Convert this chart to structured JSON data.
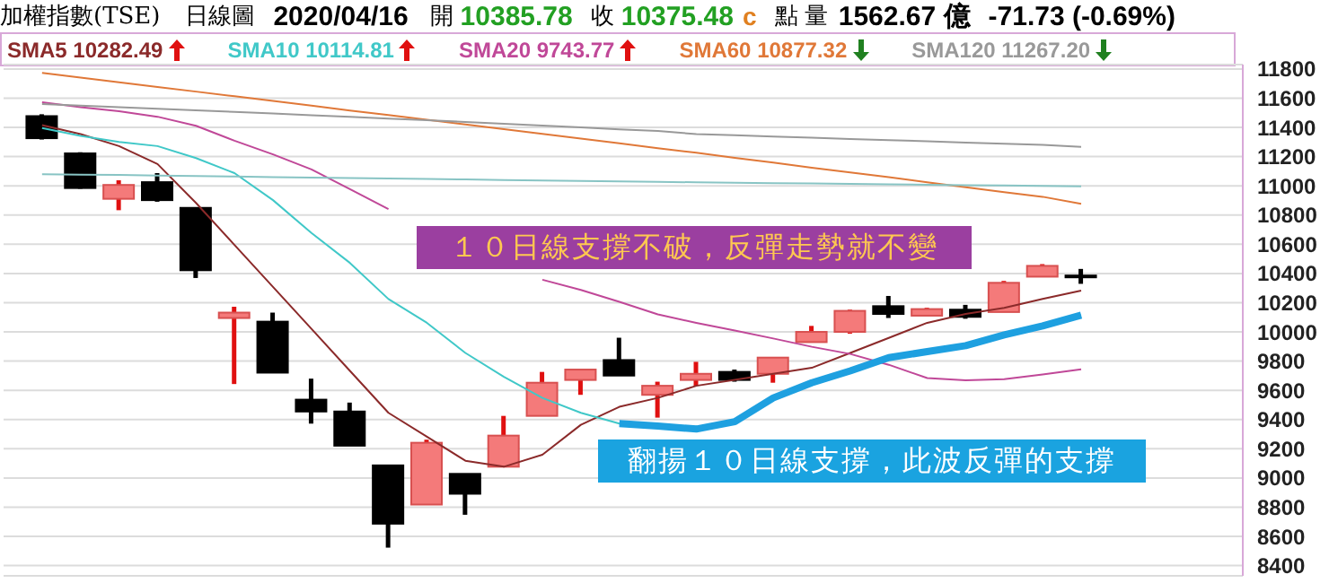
{
  "chart_data": {
    "type": "candlestick",
    "title": "加權指數(TSE)",
    "annotations": [
      "日線圖",
      "2020/04/16",
      "開",
      "10385.78",
      "收",
      "10375.48",
      "c",
      "點 量",
      "1562.67 億",
      "-71.73 (-0.69%)",
      "１０日線支撐不破，反彈走勢就不變",
      "翻揚１０日線支撐，此波反彈的支撐"
    ],
    "categories": [
      null,
      null,
      null,
      null,
      null,
      null,
      null,
      null,
      null,
      null,
      null,
      null,
      null,
      null,
      null,
      null,
      null,
      null,
      null,
      null,
      null,
      null,
      null,
      null,
      null,
      null,
      null,
      null
    ],
    "ohlc": [
      [
        11477,
        11490,
        11317,
        11326
      ],
      [
        11222,
        11230,
        10980,
        10985
      ],
      [
        10911,
        11038,
        10833,
        11006
      ],
      [
        11025,
        11087,
        10891,
        10902
      ],
      [
        10849,
        10849,
        10369,
        10422
      ],
      [
        10095,
        10172,
        9643,
        10132
      ],
      [
        10070,
        10132,
        9721,
        9721
      ],
      [
        9536,
        9680,
        9372,
        9455
      ],
      [
        9455,
        9516,
        9221,
        9221
      ],
      [
        9086,
        9086,
        8523,
        8687
      ],
      [
        8818,
        9262,
        8818,
        9241
      ],
      [
        9028,
        9028,
        8748,
        8892
      ],
      [
        9077,
        9425,
        9077,
        9290
      ],
      [
        9425,
        9726,
        9425,
        9652
      ],
      [
        9671,
        9742,
        9569,
        9742
      ],
      [
        9807,
        9960,
        9701,
        9701
      ],
      [
        9569,
        9659,
        9413,
        9631
      ],
      [
        9671,
        9795,
        9631,
        9713
      ],
      [
        9726,
        9742,
        9659,
        9671
      ],
      [
        9713,
        9824,
        9652,
        9824
      ],
      [
        9930,
        10041,
        9930,
        10000
      ],
      [
        10000,
        10152,
        9988,
        10144
      ],
      [
        10176,
        10246,
        10095,
        10123
      ],
      [
        10111,
        10165,
        10111,
        10156
      ],
      [
        10152,
        10185,
        10090,
        10103
      ],
      [
        10136,
        10349,
        10136,
        10336
      ],
      [
        10378,
        10464,
        10378,
        10452
      ],
      [
        10385.78,
        10431,
        10329,
        10375.48
      ]
    ],
    "series": [
      {
        "name": "SMA5 10282.49",
        "type": "line",
        "color": "#8b2a2a",
        "values": [
          11416,
          11354,
          11272,
          11149,
          10883,
          10595,
          10308,
          10021,
          9733,
          9446,
          9283,
          9118,
          9077,
          9159,
          9364,
          9487,
          9548,
          9631,
          9671,
          9713,
          9754,
          9856,
          9959,
          10062,
          10123,
          10164,
          10226,
          10282.49
        ]
      },
      {
        "name": "SMA10 10114.81",
        "type": "line",
        "color": "#40c8c8",
        "values": [
          11395,
          11342,
          11301,
          11272,
          11190,
          11087,
          10902,
          10677,
          10472,
          10225,
          10062,
          9856,
          9692,
          9548,
          9446,
          9372,
          9356,
          9335,
          9385,
          9548,
          9652,
          9733,
          9824,
          9865,
          9906,
          9979,
          10041,
          10114.81
        ]
      },
      {
        "name": "SMA20 9743.77",
        "type": "line",
        "color": "#c04898",
        "values": [
          11572,
          11538,
          11510,
          11473,
          11411,
          11309,
          11215,
          11112,
          10977,
          10841,
          null,
          null,
          null,
          10357,
          10287,
          10206,
          10120,
          10062,
          10009,
          9955,
          9898,
          9849,
          9775,
          9684,
          9668,
          9676,
          9708,
          9743.77
        ]
      },
      {
        "name": "SMA60 10877.32",
        "type": "line",
        "color": "#e07838",
        "values": [
          11773,
          11741,
          11709,
          11677,
          11645,
          11613,
          11581,
          11549,
          11516,
          11484,
          11452,
          11420,
          11388,
          11356,
          11323,
          11291,
          11258,
          11226,
          11191,
          11159,
          11124,
          11092,
          11059,
          11024,
          10991,
          10957,
          10925,
          10877.32
        ]
      },
      {
        "name": "SMA120 11267.20",
        "type": "line",
        "color": "#999999",
        "values": [
          11560,
          11549,
          11538,
          11528,
          11517,
          11506,
          11495,
          11483,
          11472,
          11460,
          11449,
          11437,
          11424,
          11412,
          11400,
          11387,
          11375,
          11354,
          11346,
          11337,
          11329,
          11321,
          11313,
          11305,
          11296,
          11288,
          11280,
          11267.2
        ]
      },
      {
        "type": "line",
        "color": "#88c4c4",
        "values": [
          11080,
          11077,
          11074,
          11070,
          11067,
          11064,
          11060,
          11057,
          11054,
          11050,
          11047,
          11044,
          11040,
          11037,
          11034,
          11030,
          11027,
          11024,
          11021,
          11018,
          11016,
          11013,
          11010,
          11007,
          11004,
          11002,
          10999,
          10997
        ]
      },
      {
        "type": "line",
        "color": "#1ea0e0",
        "values": [
          null,
          null,
          null,
          null,
          null,
          null,
          null,
          null,
          null,
          null,
          null,
          null,
          null,
          null,
          null,
          9372,
          9356,
          9335,
          9385,
          9548,
          9652,
          9733,
          9824,
          9865,
          9906,
          9979,
          10041,
          10114.81
        ]
      }
    ],
    "ylim": [
      8330,
      11830
    ],
    "yticks": [
      8400,
      8600,
      8800,
      9000,
      9200,
      9400,
      9600,
      9800,
      10000,
      10200,
      10400,
      10600,
      10800,
      11000,
      11200,
      11400,
      11600,
      11800
    ],
    "grid": "y",
    "tick_labels": "y"
  }
}
